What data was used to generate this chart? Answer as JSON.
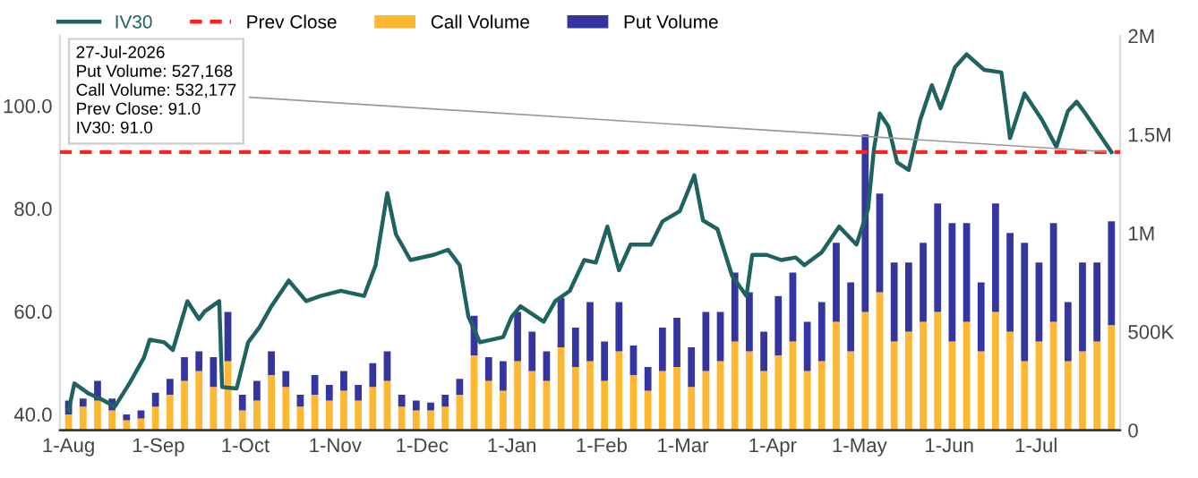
{
  "chart_data": {
    "type": "line",
    "series": [
      {
        "name": "IV30",
        "color": "#1f6360",
        "axis": "y",
        "x": [
          "2025-08-01",
          "2025-08-03",
          "2025-08-08",
          "2025-08-12",
          "2025-08-17",
          "2025-08-22",
          "2025-08-27",
          "2025-08-29",
          "2025-09-03",
          "2025-09-06",
          "2025-09-11",
          "2025-09-15",
          "2025-09-17",
          "2025-09-22",
          "2025-09-23",
          "2025-09-28",
          "2025-10-02",
          "2025-10-06",
          "2025-10-10",
          "2025-10-16",
          "2025-10-22",
          "2025-10-27",
          "2025-11-03",
          "2025-11-11",
          "2025-11-15",
          "2025-11-19",
          "2025-11-22",
          "2025-11-27",
          "2025-12-05",
          "2025-12-10",
          "2025-12-14",
          "2025-12-17",
          "2025-12-21",
          "2025-12-29",
          "2026-01-01",
          "2026-01-04",
          "2026-01-12",
          "2026-01-16",
          "2026-01-21",
          "2026-01-26",
          "2026-01-30",
          "2026-02-03",
          "2026-02-07",
          "2026-02-11",
          "2026-02-18",
          "2026-02-22",
          "2026-02-28",
          "2026-03-05",
          "2026-03-08",
          "2026-03-13",
          "2026-03-18",
          "2026-03-23",
          "2026-03-25",
          "2026-03-30",
          "2026-04-04",
          "2026-04-09",
          "2026-04-12",
          "2026-04-18",
          "2026-04-24",
          "2026-04-30",
          "2026-05-04",
          "2026-05-06",
          "2026-05-08",
          "2026-05-11",
          "2026-05-14",
          "2026-05-18",
          "2026-05-22",
          "2026-05-26",
          "2026-05-29",
          "2026-06-03",
          "2026-06-07",
          "2026-06-13",
          "2026-06-19",
          "2026-06-22",
          "2026-06-27",
          "2026-07-03",
          "2026-07-08",
          "2026-07-12",
          "2026-07-15",
          "2026-07-18",
          "2026-07-27"
        ],
        "values": [
          40.7,
          46,
          44,
          43,
          41.5,
          46,
          51,
          54.5,
          54,
          52.5,
          62,
          58.5,
          60,
          62,
          45.3,
          45,
          54,
          57,
          61,
          66,
          62,
          63,
          64,
          63,
          69,
          83,
          75,
          70,
          71,
          72,
          69,
          59,
          54,
          55,
          59,
          61,
          58,
          62,
          64,
          70,
          69.5,
          76.5,
          68,
          73,
          73,
          77.5,
          79.5,
          86.5,
          77.7,
          76,
          67,
          63,
          71,
          71,
          70,
          70.5,
          69,
          71.5,
          76.5,
          73,
          80,
          91.5,
          98.5,
          96,
          89,
          87.5,
          97.3,
          104,
          99.5,
          107.5,
          110,
          107,
          106.5,
          93.7,
          102.4,
          97.3,
          92,
          99,
          100.8,
          98.5,
          91
        ]
      },
      {
        "name": "Call Volume",
        "type": "bar",
        "color": "#ffb732",
        "axis": "y2",
        "x": [
          "2025-08-01",
          "2025-08-06",
          "2025-08-11",
          "2025-08-16",
          "2025-08-21",
          "2025-08-26",
          "2025-08-31",
          "2025-09-05",
          "2025-09-10",
          "2025-09-15",
          "2025-09-20",
          "2025-09-25",
          "2025-09-30",
          "2025-10-05",
          "2025-10-10",
          "2025-10-15",
          "2025-10-20",
          "2025-10-25",
          "2025-10-30",
          "2025-11-04",
          "2025-11-09",
          "2025-11-14",
          "2025-11-19",
          "2025-11-24",
          "2025-11-29",
          "2025-12-04",
          "2025-12-09",
          "2025-12-14",
          "2025-12-19",
          "2025-12-24",
          "2025-12-29",
          "2026-01-03",
          "2026-01-08",
          "2026-01-13",
          "2026-01-18",
          "2026-01-23",
          "2026-01-28",
          "2026-02-02",
          "2026-02-07",
          "2026-02-12",
          "2026-02-17",
          "2026-02-22",
          "2026-02-27",
          "2026-03-04",
          "2026-03-09",
          "2026-03-14",
          "2026-03-19",
          "2026-03-24",
          "2026-03-29",
          "2026-04-03",
          "2026-04-08",
          "2026-04-13",
          "2026-04-18",
          "2026-04-23",
          "2026-04-28",
          "2026-05-03",
          "2026-05-08",
          "2026-05-13",
          "2026-05-18",
          "2026-05-23",
          "2026-05-28",
          "2026-06-02",
          "2026-06-07",
          "2026-06-12",
          "2026-06-17",
          "2026-06-22",
          "2026-06-27",
          "2026-07-02",
          "2026-07-07",
          "2026-07-12",
          "2026-07-17",
          "2026-07-22",
          "2026-07-27"
        ],
        "values": [
          80000,
          120000,
          150000,
          100000,
          50000,
          60000,
          120000,
          180000,
          250000,
          300000,
          220000,
          350000,
          100000,
          150000,
          280000,
          220000,
          120000,
          180000,
          150000,
          200000,
          150000,
          220000,
          250000,
          120000,
          100000,
          100000,
          120000,
          180000,
          380000,
          250000,
          200000,
          350000,
          300000,
          250000,
          420000,
          320000,
          350000,
          250000,
          400000,
          280000,
          200000,
          300000,
          320000,
          220000,
          300000,
          350000,
          450000,
          400000,
          300000,
          380000,
          450000,
          300000,
          350000,
          550000,
          400000,
          600000,
          700000,
          450000,
          500000,
          550000,
          600000,
          450000,
          550000,
          400000,
          600000,
          500000,
          350000,
          450000,
          550000,
          350000,
          400000,
          450000,
          532177
        ]
      },
      {
        "name": "Put Volume",
        "type": "bar",
        "color": "#3535a0",
        "axis": "y2",
        "x": [
          "2025-08-01",
          "2025-08-06",
          "2025-08-11",
          "2025-08-16",
          "2025-08-21",
          "2025-08-26",
          "2025-08-31",
          "2025-09-05",
          "2025-09-10",
          "2025-09-15",
          "2025-09-20",
          "2025-09-25",
          "2025-09-30",
          "2025-10-05",
          "2025-10-10",
          "2025-10-15",
          "2025-10-20",
          "2025-10-25",
          "2025-10-30",
          "2025-11-04",
          "2025-11-09",
          "2025-11-14",
          "2025-11-19",
          "2025-11-24",
          "2025-11-29",
          "2025-12-04",
          "2025-12-09",
          "2025-12-14",
          "2025-12-19",
          "2025-12-24",
          "2025-12-29",
          "2026-01-03",
          "2026-01-08",
          "2026-01-13",
          "2026-01-18",
          "2026-01-23",
          "2026-01-28",
          "2026-02-02",
          "2026-02-07",
          "2026-02-12",
          "2026-02-17",
          "2026-02-22",
          "2026-02-27",
          "2026-03-04",
          "2026-03-09",
          "2026-03-14",
          "2026-03-19",
          "2026-03-24",
          "2026-03-29",
          "2026-04-03",
          "2026-04-08",
          "2026-04-13",
          "2026-04-18",
          "2026-04-23",
          "2026-04-28",
          "2026-05-03",
          "2026-05-08",
          "2026-05-13",
          "2026-05-18",
          "2026-05-23",
          "2026-05-28",
          "2026-06-02",
          "2026-06-07",
          "2026-06-12",
          "2026-06-17",
          "2026-06-22",
          "2026-06-27",
          "2026-07-02",
          "2026-07-07",
          "2026-07-12",
          "2026-07-17",
          "2026-07-22",
          "2026-07-27"
        ],
        "values": [
          70000,
          40000,
          100000,
          60000,
          30000,
          40000,
          70000,
          80000,
          120000,
          100000,
          150000,
          250000,
          80000,
          100000,
          120000,
          80000,
          60000,
          100000,
          80000,
          100000,
          80000,
          120000,
          150000,
          60000,
          50000,
          40000,
          60000,
          80000,
          200000,
          120000,
          150000,
          250000,
          200000,
          150000,
          250000,
          200000,
          300000,
          200000,
          250000,
          150000,
          120000,
          220000,
          250000,
          200000,
          300000,
          250000,
          350000,
          300000,
          200000,
          300000,
          350000,
          250000,
          300000,
          400000,
          350000,
          900000,
          500000,
          400000,
          350000,
          400000,
          550000,
          600000,
          500000,
          350000,
          550000,
          500000,
          600000,
          400000,
          500000,
          300000,
          450000,
          400000,
          527168
        ]
      }
    ],
    "stacked": true,
    "ylim": [
      36.9,
      113.6
    ],
    "yticks": [
      {
        "value": 40,
        "label": "40.0"
      },
      {
        "value": 60,
        "label": "60.0"
      },
      {
        "value": 80,
        "label": "80.0"
      },
      {
        "value": 100,
        "label": "100.0"
      }
    ],
    "y2lim": [
      0,
      2000000
    ],
    "y2ticks": [
      0,
      {
        "value": 500000,
        "label": "500K"
      },
      {
        "value": 1000000,
        "label": "1M"
      },
      {
        "value": 1500000,
        "label": "1.5M"
      },
      {
        "value": 2000000,
        "label": "2M"
      }
    ],
    "xlim": [
      "2025-07-29",
      "2026-07-30"
    ],
    "xticks": [
      {
        "value": "2025-08-01",
        "label": "1-Aug"
      },
      {
        "value": "2025-09-01",
        "label": "1-Sep"
      },
      {
        "value": "2025-10-01",
        "label": "1-Oct"
      },
      {
        "value": "2025-11-01",
        "label": "1-Nov"
      },
      {
        "value": "2025-12-01",
        "label": "1-Dec"
      },
      {
        "value": "2026-01-01",
        "label": "1-Jan"
      },
      {
        "value": "2026-02-01",
        "label": "1-Feb"
      },
      {
        "value": "2026-03-01",
        "label": "1-Mar"
      },
      {
        "value": "2026-04-01",
        "label": "1-Apr"
      },
      {
        "value": "2026-05-01",
        "label": "1-May"
      },
      {
        "value": "2026-06-01",
        "label": "1-Jun"
      },
      {
        "value": "2026-07-01",
        "label": "1-Jul"
      }
    ],
    "ref_lines": [
      {
        "axis": "y",
        "value": 91,
        "label": "Prev Close",
        "color": "#ff2020",
        "line_style": "dashed"
      }
    ],
    "annotations": [
      {
        "text": "27-Jul-2026\nPut Volume: 527,168\nCall Volume: 532,177\nPrev Close: 91.0\nIV30: 91.0",
        "x": "2026-07-27",
        "y": 91
      }
    ],
    "legend": "top left",
    "grid": false
  }
}
